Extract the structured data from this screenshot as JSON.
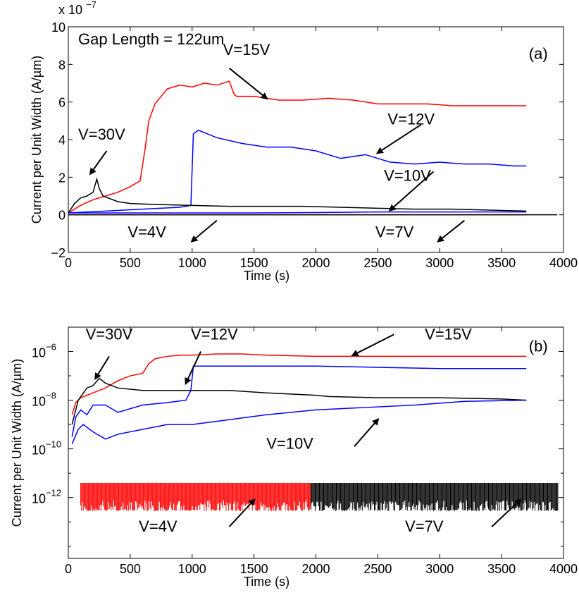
{
  "chart_data": [
    {
      "panel": "(a)",
      "type": "line",
      "annotation_title": "Gap Length = 122um",
      "scale_exponent_label": "x 10",
      "scale_exponent_power": "−7",
      "xlabel": "Time (s)",
      "ylabel": "Current per Unit Width (A/µm)",
      "xlim": [
        0,
        4000
      ],
      "ylim": [
        -2,
        10
      ],
      "xticks": [
        0,
        500,
        1000,
        1500,
        2000,
        2500,
        3000,
        3500,
        4000
      ],
      "yticks": [
        -2,
        0,
        2,
        4,
        6,
        8,
        10
      ],
      "ytick_labels": [
        "−2",
        "0",
        "2",
        "4",
        "6",
        "8",
        "10"
      ],
      "series": [
        {
          "name": "V=15V",
          "color": "#ff0000",
          "x": [
            0,
            100,
            200,
            300,
            400,
            500,
            580,
            620,
            650,
            700,
            800,
            900,
            1000,
            1100,
            1200,
            1300,
            1340,
            1360,
            1500,
            1700,
            1900,
            2100,
            2300,
            2500,
            2700,
            2900,
            3100,
            3300,
            3500,
            3700
          ],
          "y": [
            0.1,
            0.5,
            0.8,
            1.0,
            1.2,
            1.5,
            1.8,
            3.5,
            5.0,
            5.9,
            6.7,
            6.9,
            6.8,
            7.0,
            6.9,
            7.1,
            6.4,
            6.3,
            6.3,
            6.1,
            6.1,
            6.2,
            6.1,
            5.9,
            5.9,
            5.9,
            5.8,
            5.8,
            5.8,
            5.8
          ]
        },
        {
          "name": "V=12V",
          "color": "#0000ff",
          "x": [
            0,
            300,
            600,
            900,
            990,
            1010,
            1050,
            1200,
            1400,
            1600,
            1800,
            2000,
            2200,
            2400,
            2500,
            2600,
            2800,
            3000,
            3200,
            3400,
            3600,
            3700
          ],
          "y": [
            0.1,
            0.2,
            0.3,
            0.4,
            0.5,
            4.3,
            4.5,
            4.1,
            3.8,
            3.6,
            3.6,
            3.4,
            3.0,
            3.2,
            3.0,
            2.8,
            2.7,
            2.8,
            2.7,
            2.7,
            2.6,
            2.6
          ]
        },
        {
          "name": "V=30V",
          "color": "#000000",
          "x": [
            0,
            50,
            100,
            150,
            200,
            230,
            250,
            280,
            320,
            400,
            500,
            700,
            1000,
            1300,
            1600,
            1900,
            2200,
            2500,
            2800,
            3100,
            3400,
            3700
          ],
          "y": [
            0.1,
            0.6,
            0.9,
            1.0,
            1.2,
            1.9,
            1.4,
            1.0,
            0.9,
            0.7,
            0.6,
            0.55,
            0.5,
            0.45,
            0.45,
            0.45,
            0.4,
            0.35,
            0.3,
            0.3,
            0.25,
            0.2
          ]
        },
        {
          "name": "V=10V",
          "color": "#0000ff",
          "x": [
            0,
            500,
            1000,
            1500,
            2000,
            2500,
            3000,
            3500,
            3700
          ],
          "y": [
            0.1,
            0.1,
            0.1,
            0.1,
            0.12,
            0.15,
            0.15,
            0.15,
            0.15
          ]
        },
        {
          "name": "V=4V",
          "color": "#ff0000",
          "x": [
            0,
            1000,
            2000,
            3000,
            3700
          ],
          "y": [
            0.0,
            0.0,
            0.0,
            0.0,
            0.0
          ]
        },
        {
          "name": "V=7V",
          "color": "#000000",
          "x": [
            0,
            1000,
            2000,
            3000,
            3950
          ],
          "y": [
            0.0,
            0.0,
            0.0,
            0.0,
            0.0
          ]
        }
      ],
      "labels": [
        {
          "text": "V=15V",
          "x": 1250,
          "y": 8.5,
          "ax": 1300,
          "ay": 7.8,
          "hx": 1600,
          "hy": 6.2
        },
        {
          "text": "V=12V",
          "x": 2580,
          "y": 4.8,
          "ax": 2850,
          "ay": 4.8,
          "hx": 2500,
          "hy": 3.3
        },
        {
          "text": "V=30V",
          "x": 80,
          "y": 4.0,
          "ax": 310,
          "ay": 3.4,
          "hx": 180,
          "hy": 2.2
        },
        {
          "text": "V=10V",
          "x": 2550,
          "y": 1.8,
          "ax": 2950,
          "ay": 2.3,
          "hx": 2600,
          "hy": 0.25
        },
        {
          "text": "V=4V",
          "x": 480,
          "y": -1.2,
          "ax": 1200,
          "ay": -0.3,
          "hx": 1000,
          "hy": -1.4
        },
        {
          "text": "V=7V",
          "x": 2480,
          "y": -1.2,
          "ax": 3200,
          "ay": -0.3,
          "hx": 2990,
          "hy": -1.4
        }
      ],
      "panel_label_x": 3720,
      "panel_label_y": 8.3
    },
    {
      "panel": "(b)",
      "type": "line",
      "log_scale_y": true,
      "xlabel": "Time (s)",
      "ylabel": "Current per Unit Width (A/µm)",
      "xlim": [
        0,
        4000
      ],
      "ylim_log10": [
        -14.5,
        -5
      ],
      "xticks": [
        0,
        500,
        1000,
        1500,
        2000,
        2500,
        3000,
        3500,
        4000
      ],
      "ytick_powers": [
        -12,
        -10,
        -8,
        -6
      ],
      "ytick_labels": [
        "10",
        "10",
        "10",
        "10"
      ],
      "ytick_exponents": [
        "−12",
        "−10",
        "−8",
        "−6"
      ],
      "series": [
        {
          "name": "V=15V",
          "color": "#ff0000",
          "x": [
            30,
            60,
            100,
            200,
            300,
            400,
            500,
            600,
            650,
            700,
            800,
            900,
            1000,
            1200,
            1400,
            1600,
            2000,
            2400,
            2800,
            3200,
            3700
          ],
          "y_log10": [
            -8.6,
            -8.1,
            -7.9,
            -7.7,
            -7.5,
            -7.2,
            -7.0,
            -6.9,
            -6.5,
            -6.3,
            -6.2,
            -6.15,
            -6.15,
            -6.1,
            -6.1,
            -6.15,
            -6.2,
            -6.2,
            -6.2,
            -6.2,
            -6.2
          ]
        },
        {
          "name": "V=12V",
          "color": "#0000ff",
          "x": [
            30,
            60,
            100,
            150,
            200,
            300,
            400,
            600,
            800,
            950,
            990,
            1010,
            1100,
            1500,
            2000,
            2500,
            3000,
            3500,
            3700
          ],
          "y_log10": [
            -9.5,
            -8.7,
            -8.4,
            -8.6,
            -8.2,
            -8.2,
            -8.5,
            -8.2,
            -8.1,
            -8.0,
            -7.6,
            -6.6,
            -6.6,
            -6.6,
            -6.6,
            -6.65,
            -6.7,
            -6.7,
            -6.7
          ]
        },
        {
          "name": "V=30V",
          "color": "#000000",
          "x": [
            30,
            80,
            150,
            200,
            250,
            300,
            400,
            600,
            800,
            1000,
            1300,
            1600,
            2000,
            2100,
            2500,
            3000,
            3500,
            3700
          ],
          "y_log10": [
            -9.0,
            -8.0,
            -7.5,
            -7.4,
            -7.1,
            -7.3,
            -7.5,
            -7.6,
            -7.6,
            -7.6,
            -7.6,
            -7.7,
            -7.8,
            -7.85,
            -7.9,
            -7.9,
            -7.95,
            -8.0
          ]
        },
        {
          "name": "V=10V",
          "color": "#0000ff",
          "x": [
            30,
            80,
            120,
            200,
            300,
            400,
            600,
            800,
            1000,
            1300,
            1600,
            2000,
            2400,
            2800,
            3200,
            3700
          ],
          "y_log10": [
            -9.8,
            -9.2,
            -9.0,
            -9.3,
            -9.6,
            -9.4,
            -9.2,
            -9.0,
            -9.0,
            -8.8,
            -8.6,
            -8.4,
            -8.3,
            -8.2,
            -8.05,
            -8.0
          ]
        },
        {
          "name": "V=4V",
          "color": "#ff0000",
          "x_start": 100,
          "x_end": 1960,
          "base_log10": -11.4,
          "floor_log10": -12.5,
          "spike_step": 6
        },
        {
          "name": "V=7V",
          "color": "#000000",
          "x_start": 1960,
          "x_end": 3960,
          "base_log10": -11.4,
          "floor_log10": -12.5,
          "spike_step": 9
        }
      ],
      "labels": [
        {
          "text": "V=30V",
          "x": 140,
          "y_log10": -5.5,
          "ax": 330,
          "ay_log10": -6.2,
          "hx": 220,
          "hy_log10": -7.1
        },
        {
          "text": "V=12V",
          "x": 990,
          "y_log10": -5.5,
          "ax": 1070,
          "ay_log10": -6.0,
          "hx": 950,
          "hy_log10": -7.3
        },
        {
          "text": "V=15V",
          "x": 2880,
          "y_log10": -5.5,
          "ax": 2630,
          "ay_log10": -5.3,
          "hx": 2300,
          "hy_log10": -6.15
        },
        {
          "text": "V=10V",
          "x": 1600,
          "y_log10": -10.0,
          "ax": 2310,
          "ay_log10": -9.9,
          "hx": 2500,
          "hy_log10": -8.8
        },
        {
          "text": "V=4V",
          "x": 570,
          "y_log10": -13.4,
          "ax": 1300,
          "ay_log10": -13.2,
          "hx": 1500,
          "hy_log10": -12.1
        },
        {
          "text": "V=7V",
          "x": 2720,
          "y_log10": -13.4,
          "ax": 3420,
          "ay_log10": -13.2,
          "hx": 3650,
          "hy_log10": -12.1
        }
      ],
      "panel_label_x": 3720,
      "panel_label_y_log10": -6.0
    }
  ]
}
